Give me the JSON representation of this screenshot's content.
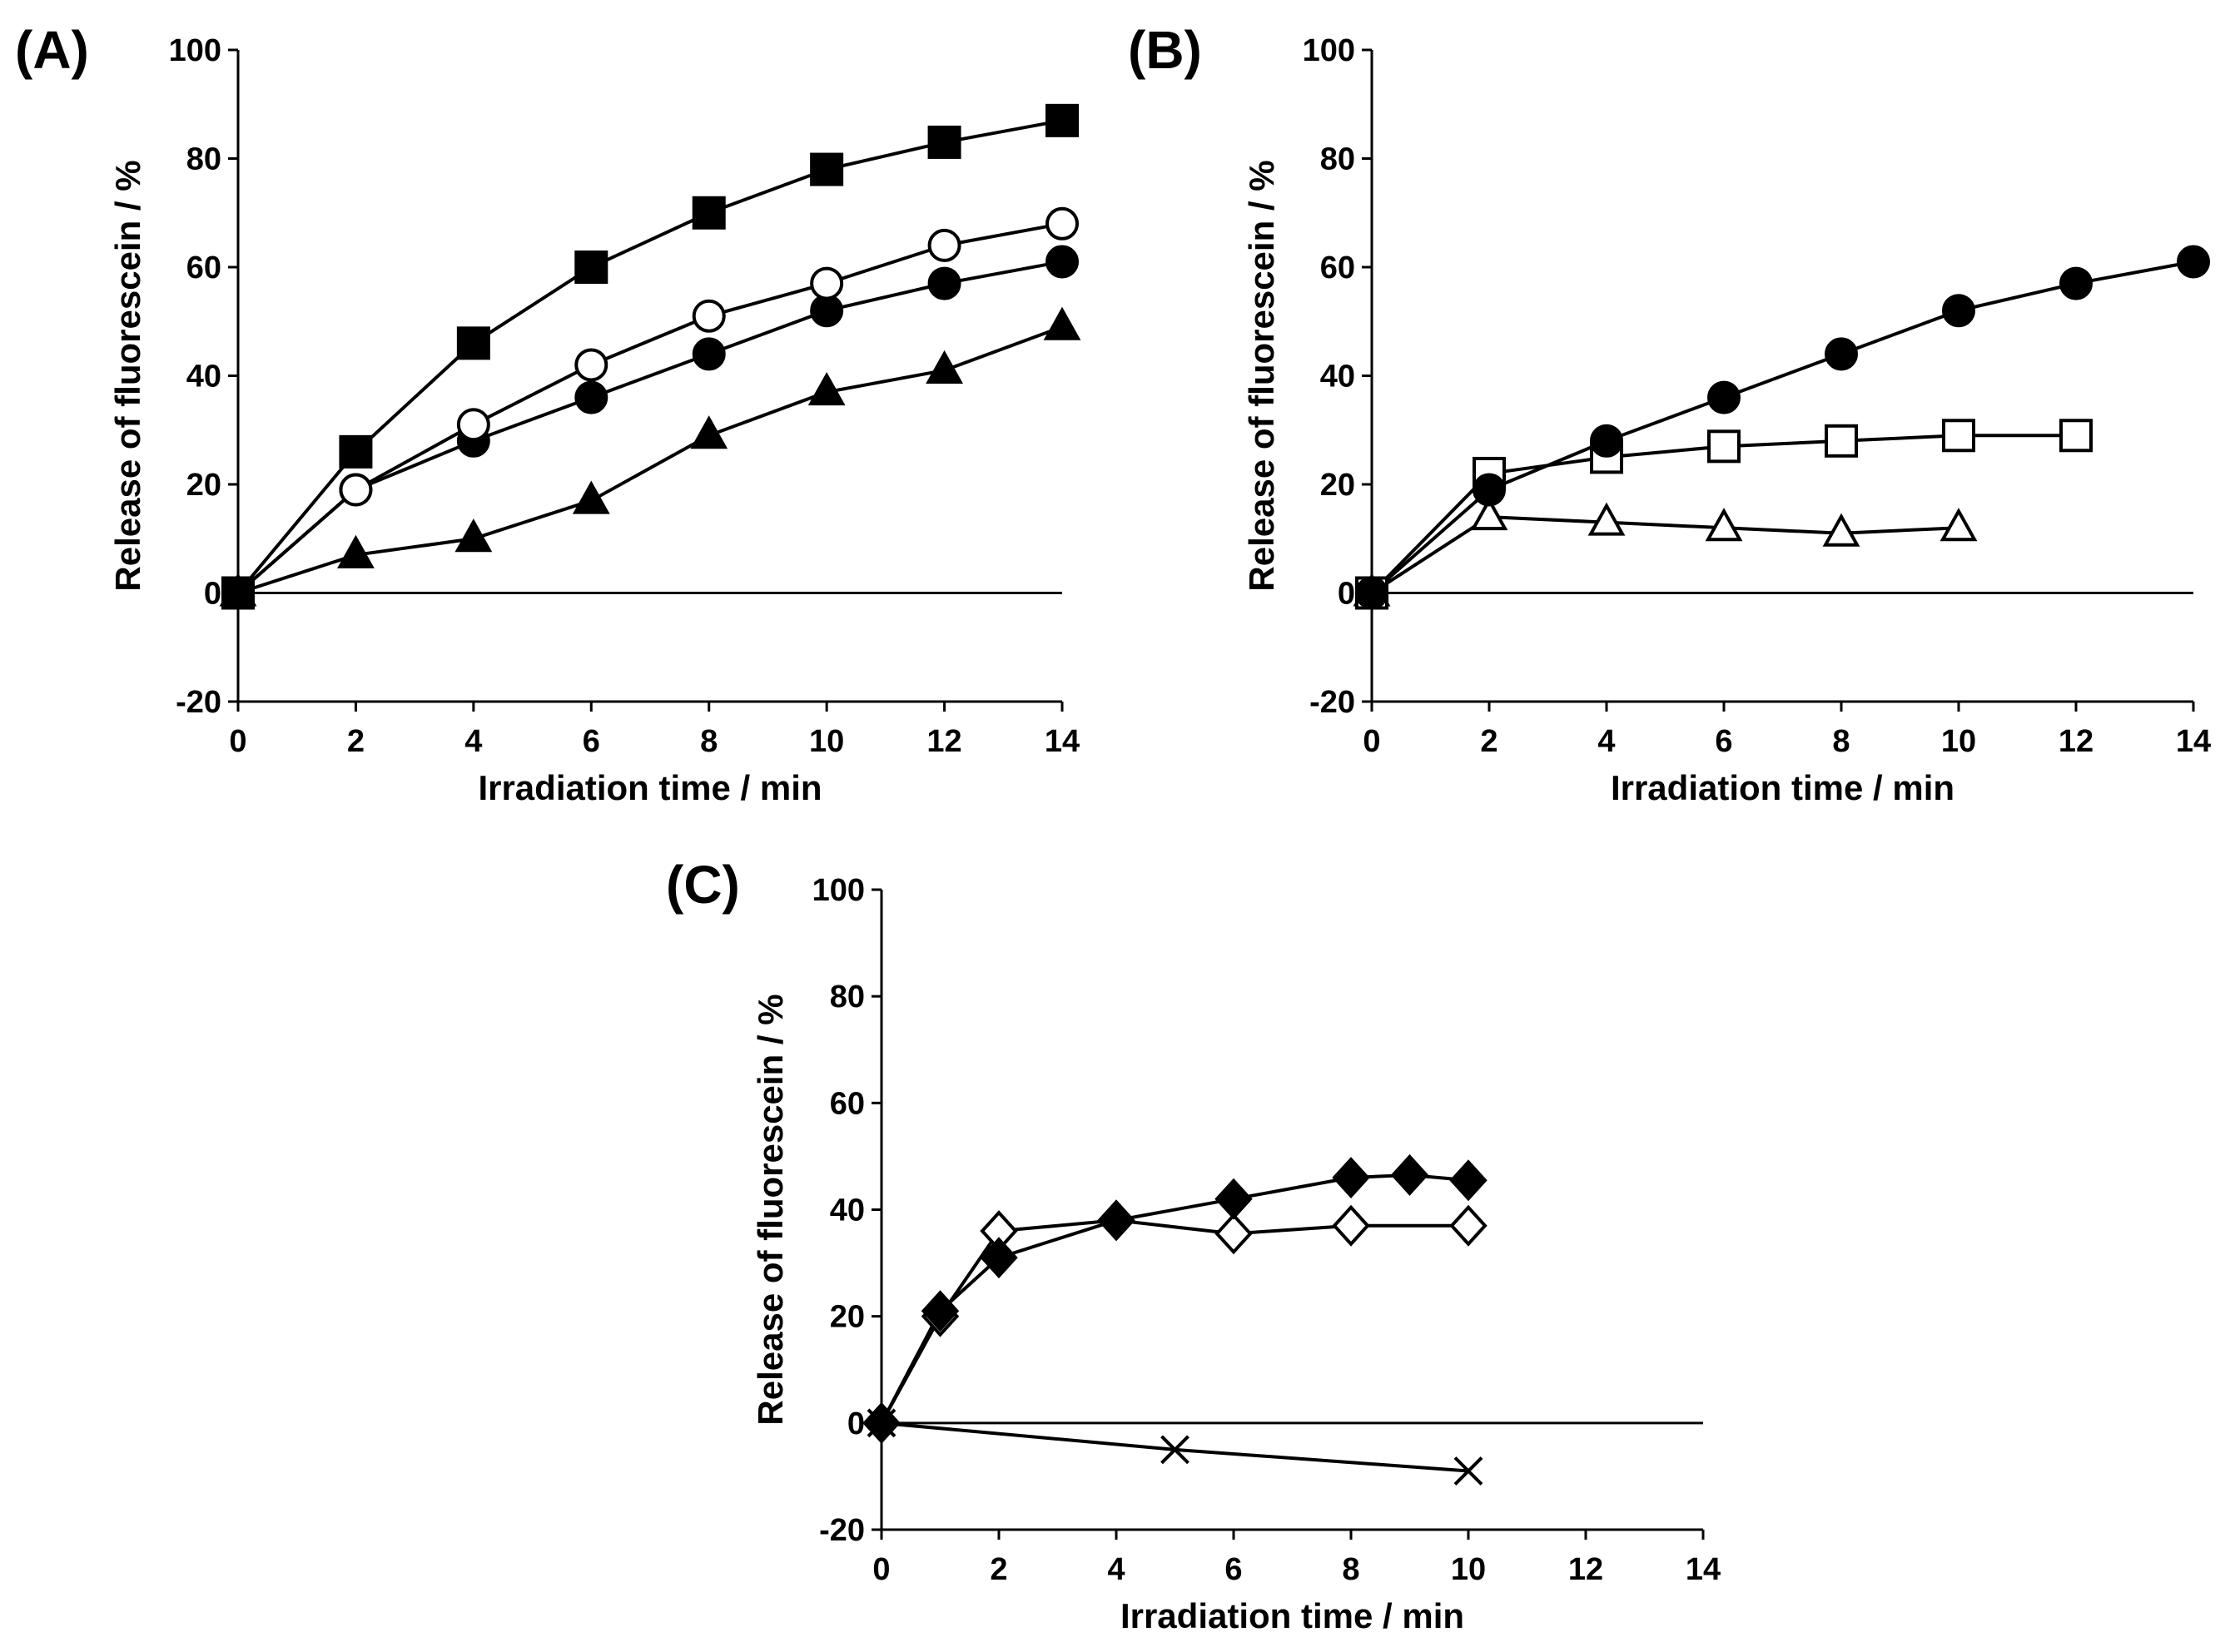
{
  "chart_data": [
    {
      "panel": "(A)",
      "type": "line",
      "xlabel": "Irradiation  time / min",
      "ylabel": "Release of fluorescein  / %",
      "xlim": [
        0,
        14
      ],
      "ylim": [
        -20,
        100
      ],
      "xticks": [
        0,
        2,
        4,
        6,
        8,
        10,
        12,
        14
      ],
      "yticks": [
        -20,
        0,
        20,
        40,
        60,
        80,
        100
      ],
      "series": [
        {
          "name": "filled square",
          "marker": "square",
          "filled": true,
          "x": [
            0,
            2,
            4,
            6,
            8,
            10,
            12,
            14
          ],
          "y": [
            0,
            26,
            46,
            60,
            70,
            78,
            83,
            87
          ]
        },
        {
          "name": "open circle",
          "marker": "circle",
          "filled": false,
          "x": [
            0,
            2,
            4,
            6,
            8,
            10,
            12,
            14
          ],
          "y": [
            0,
            19,
            31,
            42,
            51,
            57,
            64,
            68
          ]
        },
        {
          "name": "filled circle",
          "marker": "circle",
          "filled": true,
          "x": [
            0,
            2,
            4,
            6,
            8,
            10,
            12,
            14
          ],
          "y": [
            0,
            19,
            28,
            36,
            44,
            52,
            57,
            61
          ]
        },
        {
          "name": "filled triangle",
          "marker": "triangle",
          "filled": true,
          "x": [
            0,
            2,
            4,
            6,
            8,
            10,
            12,
            14
          ],
          "y": [
            0,
            7,
            10,
            17,
            29,
            37,
            41,
            49
          ]
        }
      ]
    },
    {
      "panel": "(B)",
      "type": "line",
      "xlabel": "Irradiation  time / min",
      "ylabel": "Release of fluorescein  / %",
      "xlim": [
        0,
        14
      ],
      "ylim": [
        -20,
        100
      ],
      "xticks": [
        0,
        2,
        4,
        6,
        8,
        10,
        12,
        14
      ],
      "yticks": [
        -20,
        0,
        20,
        40,
        60,
        80,
        100
      ],
      "series": [
        {
          "name": "filled circle",
          "marker": "circle",
          "filled": true,
          "x": [
            0,
            2,
            4,
            6,
            8,
            10,
            12,
            14
          ],
          "y": [
            0,
            19,
            28,
            36,
            44,
            52,
            57,
            61
          ]
        },
        {
          "name": "open square",
          "marker": "square",
          "filled": false,
          "x": [
            0,
            2,
            4,
            6,
            8,
            10,
            12
          ],
          "y": [
            0,
            22,
            25,
            27,
            28,
            29,
            29
          ]
        },
        {
          "name": "open triangle",
          "marker": "triangle",
          "filled": false,
          "x": [
            0,
            2,
            4,
            6,
            8,
            10
          ],
          "y": [
            0,
            14,
            13,
            12,
            11,
            12
          ]
        }
      ]
    },
    {
      "panel": "(C)",
      "type": "line",
      "xlabel": "Irradiation  time / min",
      "ylabel": "Release of fluorescein  / %",
      "xlim": [
        0,
        14
      ],
      "ylim": [
        -20,
        100
      ],
      "xticks": [
        0,
        2,
        4,
        6,
        8,
        10,
        12,
        14
      ],
      "yticks": [
        -20,
        0,
        20,
        40,
        60,
        80,
        100
      ],
      "series": [
        {
          "name": "filled diamond",
          "marker": "diamond",
          "filled": true,
          "x": [
            0,
            1,
            2,
            4,
            6,
            8,
            9,
            10
          ],
          "y": [
            0,
            21,
            31,
            38,
            42,
            46,
            46.5,
            45.5
          ]
        },
        {
          "name": "open diamond",
          "marker": "diamond",
          "filled": false,
          "x": [
            0,
            1,
            2,
            4,
            6,
            8,
            10
          ],
          "y": [
            0,
            20,
            36,
            38,
            35.5,
            37,
            37
          ]
        },
        {
          "name": "cross",
          "marker": "cross",
          "filled": false,
          "x": [
            0,
            5,
            10
          ],
          "y": [
            0,
            -5,
            -9
          ]
        }
      ]
    }
  ]
}
